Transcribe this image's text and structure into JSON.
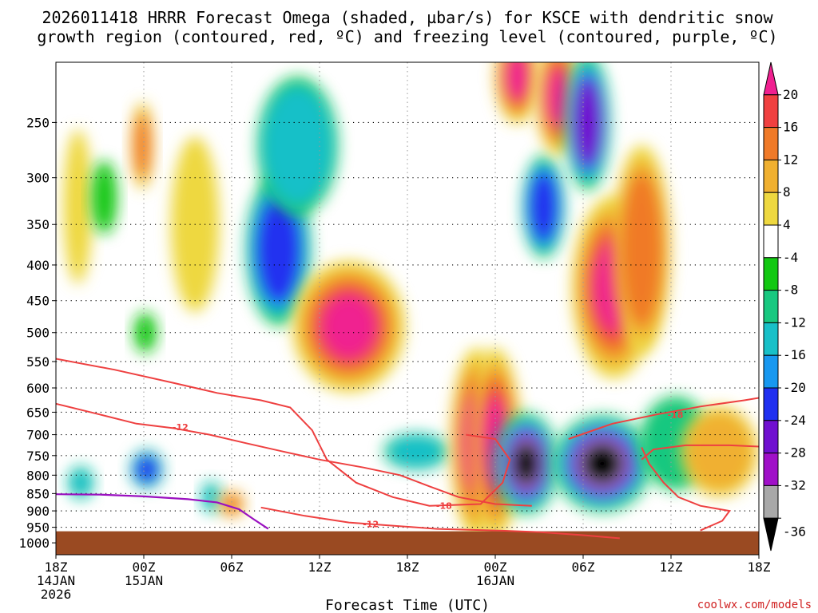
{
  "title_line1": "2026011418 HRRR Forecast Omega (shaded, µbar/s) for KSCE with dendritic snow",
  "title_line2": "growth region (contoured, red, ºC) and freezing level (contoured, purple, ºC)",
  "xlabel": "Forecast Time (UTC)",
  "credit": "coolwx.com/models",
  "colors": {
    "ground": "#9a4a22",
    "dendritic": "#ee4040",
    "freezing": "#9a10c0",
    "credit": "#d02020",
    "grid": "#9a9a9a"
  },
  "chart_data": {
    "type": "heatmap",
    "yaxis": {
      "scale": "log-pressure",
      "range": [
        1040,
        205
      ],
      "ticks": [
        250,
        300,
        350,
        400,
        450,
        500,
        550,
        600,
        650,
        700,
        750,
        800,
        850,
        900,
        950,
        1000
      ]
    },
    "xaxis": {
      "range_hours": [
        0,
        48
      ],
      "ticks": [
        {
          "hour": 0,
          "l1": "18Z",
          "l2": "14JAN",
          "l3": "2026"
        },
        {
          "hour": 6,
          "l1": "00Z",
          "l2": "15JAN",
          "l3": ""
        },
        {
          "hour": 12,
          "l1": "06Z",
          "l2": "",
          "l3": ""
        },
        {
          "hour": 18,
          "l1": "12Z",
          "l2": "",
          "l3": ""
        },
        {
          "hour": 24,
          "l1": "18Z",
          "l2": "",
          "l3": ""
        },
        {
          "hour": 30,
          "l1": "00Z",
          "l2": "16JAN",
          "l3": ""
        },
        {
          "hour": 36,
          "l1": "06Z",
          "l2": "",
          "l3": ""
        },
        {
          "hour": 42,
          "l1": "12Z",
          "l2": "",
          "l3": ""
        },
        {
          "hour": 48,
          "l1": "18Z",
          "l2": "",
          "l3": ""
        }
      ]
    },
    "colorbar": {
      "levels": [
        {
          "label": "",
          "color": "#f02090"
        },
        {
          "label": "20",
          "color": "#f04040"
        },
        {
          "label": "16",
          "color": "#f07a28"
        },
        {
          "label": "12",
          "color": "#f0b030"
        },
        {
          "label": "8",
          "color": "#eed840"
        },
        {
          "label": "4",
          "color": "#ffffff"
        },
        {
          "label": "-4",
          "color": "#12c812"
        },
        {
          "label": "-8",
          "color": "#18c880"
        },
        {
          "label": "-12",
          "color": "#18c0c8"
        },
        {
          "label": "-16",
          "color": "#1898f0"
        },
        {
          "label": "-20",
          "color": "#2030f0"
        },
        {
          "label": "-24",
          "color": "#7010d0"
        },
        {
          "label": "-28",
          "color": "#a010c8"
        },
        {
          "label": "-32",
          "color": "#a8a8a8"
        },
        {
          "label": "-36",
          "color": "#000000"
        }
      ]
    },
    "cells": [
      {
        "t": 1.5,
        "p": 330,
        "dt": 0.9,
        "dp": 150,
        "v": 7
      },
      {
        "t": 1.7,
        "p": 820,
        "dt": 0.8,
        "dp": 80,
        "v": -14
      },
      {
        "t": 3.3,
        "p": 320,
        "dt": 0.8,
        "dp": 70,
        "v": -6
      },
      {
        "t": 5.9,
        "p": 270,
        "dt": 0.7,
        "dp": 70,
        "v": 14
      },
      {
        "t": 6.1,
        "p": 500,
        "dt": 0.7,
        "dp": 60,
        "v": -6
      },
      {
        "t": 6.2,
        "p": 785,
        "dt": 1.0,
        "dp": 90,
        "v": -22
      },
      {
        "t": 9.5,
        "p": 350,
        "dt": 1.5,
        "dp": 180,
        "v": 6
      },
      {
        "t": 10.6,
        "p": 860,
        "dt": 0.6,
        "dp": 80,
        "v": -14
      },
      {
        "t": 12.0,
        "p": 880,
        "dt": 0.8,
        "dp": 70,
        "v": 14
      },
      {
        "t": 15.2,
        "p": 380,
        "dt": 2.0,
        "dp": 170,
        "v": -22
      },
      {
        "t": 16.5,
        "p": 270,
        "dt": 2.5,
        "dp": 110,
        "v": -14
      },
      {
        "t": 20.0,
        "p": 490,
        "dt": 3.5,
        "dp": 190,
        "v": 24
      },
      {
        "t": 24.6,
        "p": 740,
        "dt": 2.0,
        "dp": 80,
        "v": -14
      },
      {
        "t": 28.7,
        "p": 720,
        "dt": 1.6,
        "dp": 400,
        "v": 24
      },
      {
        "t": 30.0,
        "p": 720,
        "dt": 1.6,
        "dp": 400,
        "v": 24
      },
      {
        "t": 31.5,
        "p": 215,
        "dt": 1.4,
        "dp": 60,
        "v": 24
      },
      {
        "t": 32.1,
        "p": 770,
        "dt": 2.0,
        "dp": 230,
        "v": -38
      },
      {
        "t": 33.3,
        "p": 330,
        "dt": 1.3,
        "dp": 100,
        "v": -22
      },
      {
        "t": 34.3,
        "p": 230,
        "dt": 1.4,
        "dp": 80,
        "v": 24
      },
      {
        "t": 36.3,
        "p": 250,
        "dt": 1.4,
        "dp": 100,
        "v": -26
      },
      {
        "t": 37.3,
        "p": 770,
        "dt": 3.0,
        "dp": 220,
        "v": -38
      },
      {
        "t": 38.1,
        "p": 430,
        "dt": 2.6,
        "dp": 230,
        "v": 24
      },
      {
        "t": 40.0,
        "p": 380,
        "dt": 1.8,
        "dp": 230,
        "v": 12
      },
      {
        "t": 42.3,
        "p": 720,
        "dt": 2.2,
        "dp": 200,
        "v": -10
      },
      {
        "t": 45.3,
        "p": 740,
        "dt": 2.4,
        "dp": 200,
        "v": 8
      }
    ],
    "contours": {
      "dendritic": [
        {
          "label": "-12",
          "label_at": {
            "t": 8.5,
            "p": 683
          },
          "points": [
            [
              0,
              632
            ],
            [
              3,
              655
            ],
            [
              5.5,
              675
            ],
            [
              8,
              685
            ],
            [
              10.5,
              700
            ],
            [
              13,
              720
            ],
            [
              15.5,
              740
            ],
            [
              18,
              760
            ],
            [
              21,
              780
            ],
            [
              23.5,
              800
            ],
            [
              25.5,
              830
            ],
            [
              27.5,
              860
            ],
            [
              30,
              880
            ],
            [
              32.5,
              885
            ]
          ]
        },
        {
          "label": "-12",
          "label_at": {
            "t": 21.5,
            "p": 940
          },
          "points": [
            [
              14,
              890
            ],
            [
              17,
              915
            ],
            [
              20,
              935
            ],
            [
              23,
              945
            ],
            [
              26,
              955
            ],
            [
              30,
              960
            ],
            [
              33,
              965
            ],
            [
              36,
              975
            ],
            [
              38.5,
              985
            ]
          ]
        },
        {
          "label": "-18",
          "label_at": {
            "t": 26.5,
            "p": 885
          },
          "points": [
            [
              0,
              545
            ],
            [
              4,
              565
            ],
            [
              8,
              590
            ],
            [
              11,
              610
            ],
            [
              14,
              625
            ],
            [
              16,
              640
            ],
            [
              17.5,
              690
            ],
            [
              18.5,
              760
            ],
            [
              20.5,
              820
            ],
            [
              23,
              860
            ],
            [
              25.5,
              885
            ],
            [
              29,
              880
            ],
            [
              30.5,
              820
            ],
            [
              31,
              760
            ],
            [
              30,
              710
            ],
            [
              28,
              700
            ]
          ]
        },
        {
          "label": "-18",
          "label_at": {
            "t": 42.3,
            "p": 655
          },
          "points": [
            [
              35,
              710
            ],
            [
              38,
              675
            ],
            [
              41,
              655
            ],
            [
              44,
              638
            ],
            [
              47,
              625
            ],
            [
              48,
              620
            ]
          ]
        },
        {
          "label": "",
          "label_at": null,
          "points": [
            [
              40,
              730
            ],
            [
              40.5,
              770
            ],
            [
              41.5,
              820
            ],
            [
              42.5,
              860
            ],
            [
              44,
              885
            ],
            [
              46,
              900
            ],
            [
              45.5,
              930
            ],
            [
              44,
              960
            ]
          ]
        },
        {
          "label": "",
          "label_at": null,
          "points": [
            [
              40,
              760
            ],
            [
              40.8,
              735
            ],
            [
              43,
              725
            ],
            [
              46,
              725
            ],
            [
              48,
              728
            ]
          ]
        }
      ],
      "freezing": [
        {
          "label": "",
          "points": [
            [
              0,
              852
            ],
            [
              3,
              853
            ],
            [
              6,
              858
            ],
            [
              9,
              866
            ],
            [
              11,
              875
            ],
            [
              12.5,
              895
            ],
            [
              13.5,
              925
            ],
            [
              14.5,
              955
            ]
          ]
        }
      ]
    },
    "ground_pressure": 955
  }
}
